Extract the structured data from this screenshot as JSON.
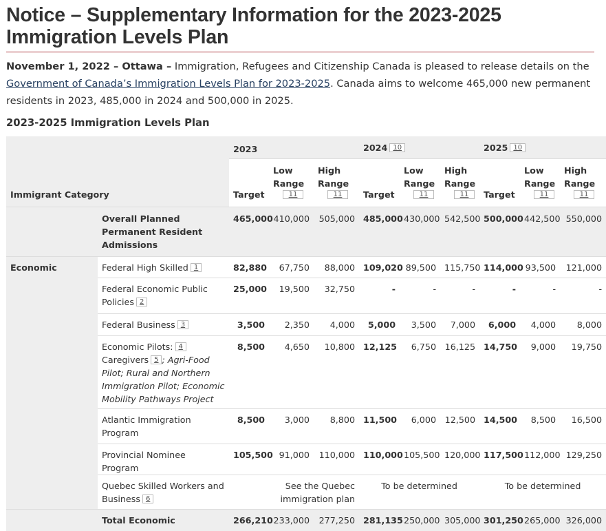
{
  "title": "Notice – Supplementary Information for the 2023-2025 Immigration Levels Plan",
  "intro": {
    "dateline": "November 1, 2022 – Ottawa –",
    "text1": " Immigration, Refugees and Citizenship Canada is pleased to release details on the ",
    "link": "Government of Canada’s Immigration Levels Plan for 2023-2025",
    "text2": ". Canada aims to welcome 465,000 new permanent residents in 2023, 485,000 in 2024 and 500,000 in 2025."
  },
  "table_title": "2023-2025 Immigration Levels Plan",
  "table": {
    "category_header": "Immigrant Category",
    "years": [
      {
        "label": "2023",
        "footnote": ""
      },
      {
        "label": "2024",
        "footnote": "10"
      },
      {
        "label": "2025",
        "footnote": "10"
      }
    ],
    "subheaders": {
      "target": "Target",
      "low": "Low Range",
      "high": "High Range",
      "range_footnote": "11"
    },
    "overall": {
      "label": "Overall Planned Permanent Resident Admissions",
      "values": [
        "465,000",
        "410,000",
        "505,000",
        "485,000",
        "430,000",
        "542,500",
        "500,000",
        "442,500",
        "550,000"
      ]
    },
    "group": "Economic",
    "rows": [
      {
        "label": "Federal High Skilled",
        "footnote": "1",
        "values": [
          "82,880",
          "67,750",
          "88,000",
          "109,020",
          "89,500",
          "115,750",
          "114,000",
          "93,500",
          "121,000"
        ]
      },
      {
        "label": "Federal Economic Public Policies",
        "footnote": "2",
        "values": [
          "25,000",
          "19,500",
          "32,750",
          "-",
          "-",
          "-",
          "-",
          "-",
          "-"
        ]
      },
      {
        "label": "Federal Business",
        "footnote": "3",
        "values": [
          "3,500",
          "2,350",
          "4,000",
          "5,000",
          "3,500",
          "7,000",
          "6,000",
          "4,000",
          "8,000"
        ]
      },
      {
        "label_a": "Economic Pilots:",
        "footnote_a": "4",
        "label_b": "Caregivers",
        "footnote_b": "5",
        "label_c": "; Agri-Food Pilot; Rural and Northern Immigration Pilot; Economic Mobility Pathways Project",
        "values": [
          "8,500",
          "4,650",
          "10,800",
          "12,125",
          "6,750",
          "16,125",
          "14,750",
          "9,000",
          "19,750"
        ]
      },
      {
        "label": "Atlantic Immigration Program",
        "values": [
          "8,500",
          "3,000",
          "8,800",
          "11,500",
          "6,000",
          "12,500",
          "14,500",
          "8,500",
          "16,500"
        ]
      },
      {
        "label": "Provincial Nominee Program",
        "values": [
          "105,500",
          "91,000",
          "110,000",
          "110,000",
          "105,500",
          "120,000",
          "117,500",
          "112,000",
          "129,250"
        ]
      },
      {
        "label": "Quebec Skilled Workers and Business",
        "footnote": "6",
        "span_2023": "See the Quebec immigration plan",
        "span_2024": "To be determined",
        "span_2025": "To be determined"
      }
    ],
    "total": {
      "label": "Total Economic",
      "values": [
        "266,210",
        "233,000",
        "277,250",
        "281,135",
        "250,000",
        "305,000",
        "301,250",
        "265,000",
        "326,000"
      ]
    }
  }
}
